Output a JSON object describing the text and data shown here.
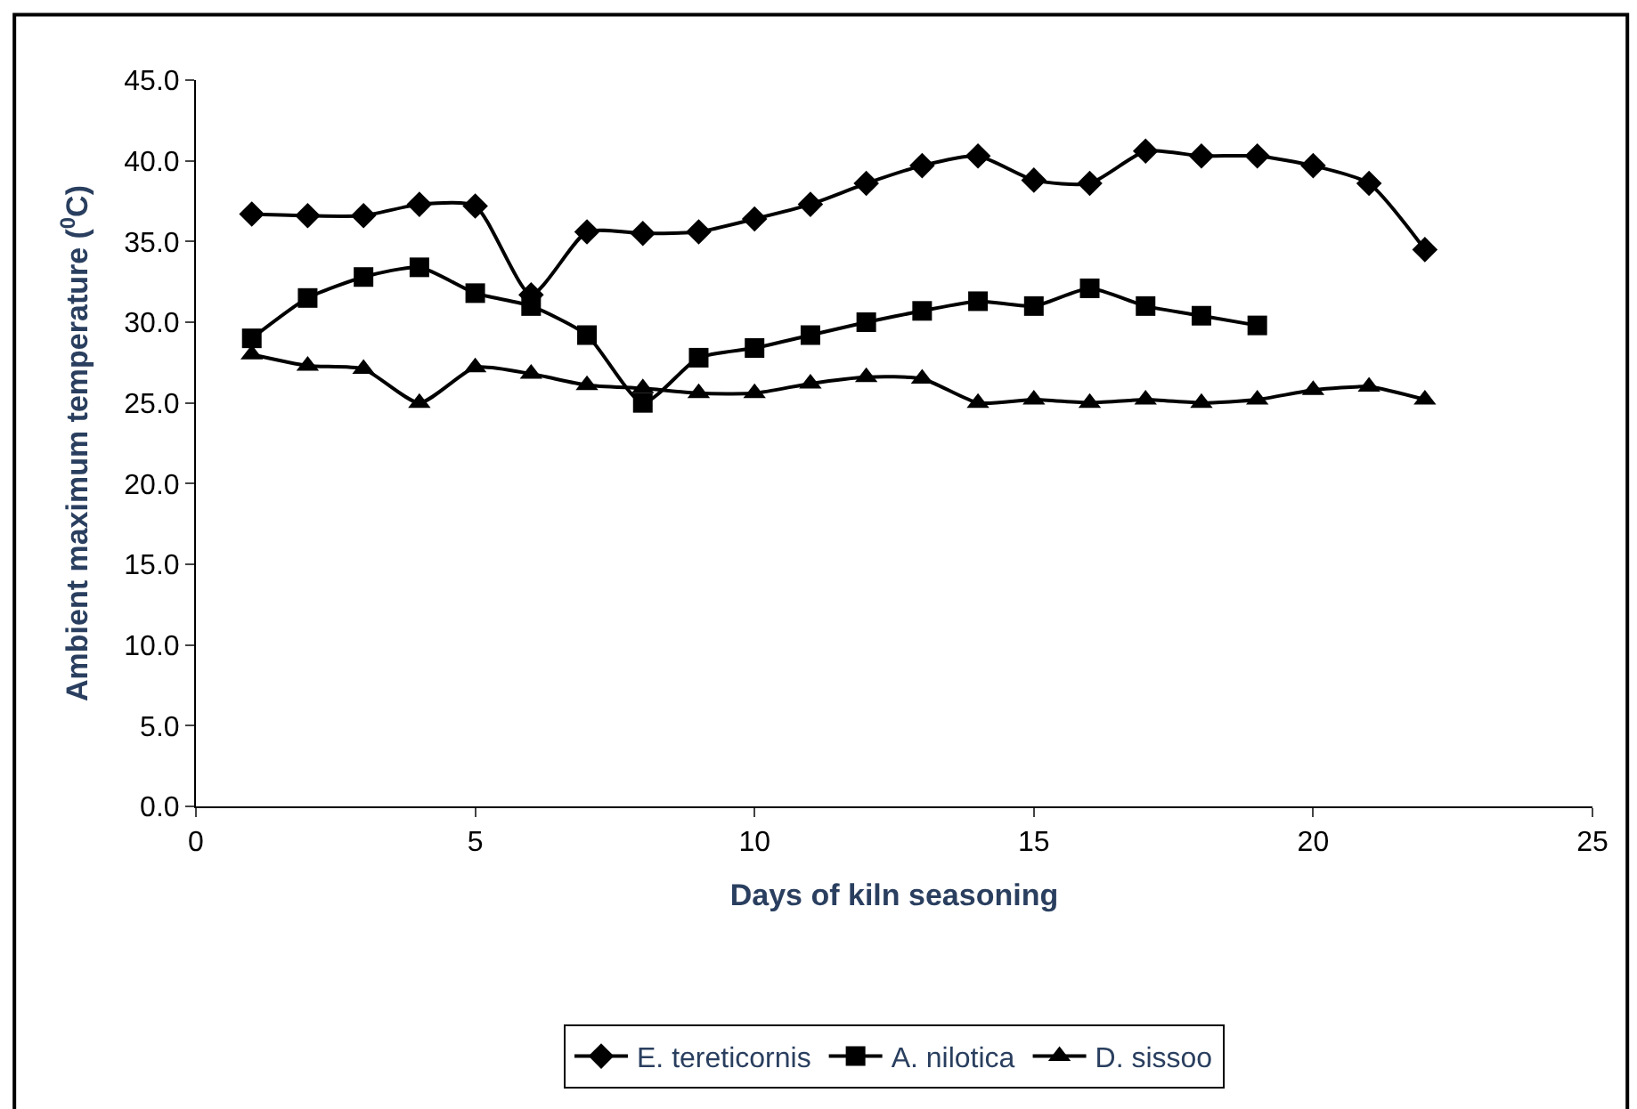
{
  "chart_data": {
    "type": "line",
    "xlabel": "Days of kiln seasoning",
    "ylabel": "Ambient maximum temperature ($^{0}$C)",
    "xlim": [
      0,
      25
    ],
    "xticks": [
      0,
      5,
      10,
      15,
      20,
      25
    ],
    "ylim": [
      0,
      45
    ],
    "yticks": [
      {
        "value": 0,
        "label": "0.0"
      },
      {
        "value": 5,
        "label": "5.0"
      },
      {
        "value": 10,
        "label": "10.0"
      },
      {
        "value": 15,
        "label": "15.0"
      },
      {
        "value": 20,
        "label": "20.0"
      },
      {
        "value": 25,
        "label": "25.0"
      },
      {
        "value": 30,
        "label": "30.0"
      },
      {
        "value": 35,
        "label": "35.0"
      },
      {
        "value": 40,
        "label": "40.0"
      },
      {
        "value": 45,
        "label": "45.0"
      }
    ],
    "grid": false,
    "legend": "bottom",
    "series": [
      {
        "name": "E. tereticornis",
        "color": "#000000",
        "marker": "diamond",
        "x": [
          1,
          2,
          3,
          4,
          5,
          6,
          7,
          8,
          9,
          10,
          11,
          12,
          13,
          14,
          15,
          16,
          17,
          18,
          19,
          20,
          21,
          22
        ],
        "values": [
          36.7,
          36.6,
          36.6,
          37.3,
          37.2,
          31.7,
          35.6,
          35.5,
          35.6,
          36.4,
          37.3,
          38.6,
          39.7,
          40.3,
          38.8,
          38.6,
          40.6,
          40.3,
          40.3,
          39.7,
          38.6,
          34.5
        ]
      },
      {
        "name": "A. nilotica",
        "color": "#000000",
        "marker": "square",
        "x": [
          1,
          2,
          3,
          4,
          5,
          6,
          7,
          8,
          9,
          10,
          11,
          12,
          13,
          14,
          15,
          16,
          17,
          18,
          19
        ],
        "values": [
          29.0,
          31.5,
          32.8,
          33.4,
          31.8,
          31.0,
          29.2,
          25.0,
          27.8,
          28.4,
          29.2,
          30.0,
          30.7,
          31.3,
          31.0,
          32.1,
          31.0,
          30.4,
          29.8
        ]
      },
      {
        "name": "D. sissoo",
        "color": "#000000",
        "marker": "triangle",
        "x": [
          1,
          2,
          3,
          4,
          5,
          6,
          7,
          8,
          9,
          10,
          11,
          12,
          13,
          14,
          15,
          16,
          17,
          18,
          19,
          20,
          21,
          22
        ],
        "values": [
          28.0,
          27.3,
          27.1,
          25.0,
          27.2,
          26.8,
          26.1,
          25.9,
          25.6,
          25.6,
          26.2,
          26.6,
          26.5,
          25.0,
          25.2,
          25.0,
          25.2,
          25.0,
          25.2,
          25.8,
          26.0,
          25.2
        ]
      }
    ]
  }
}
